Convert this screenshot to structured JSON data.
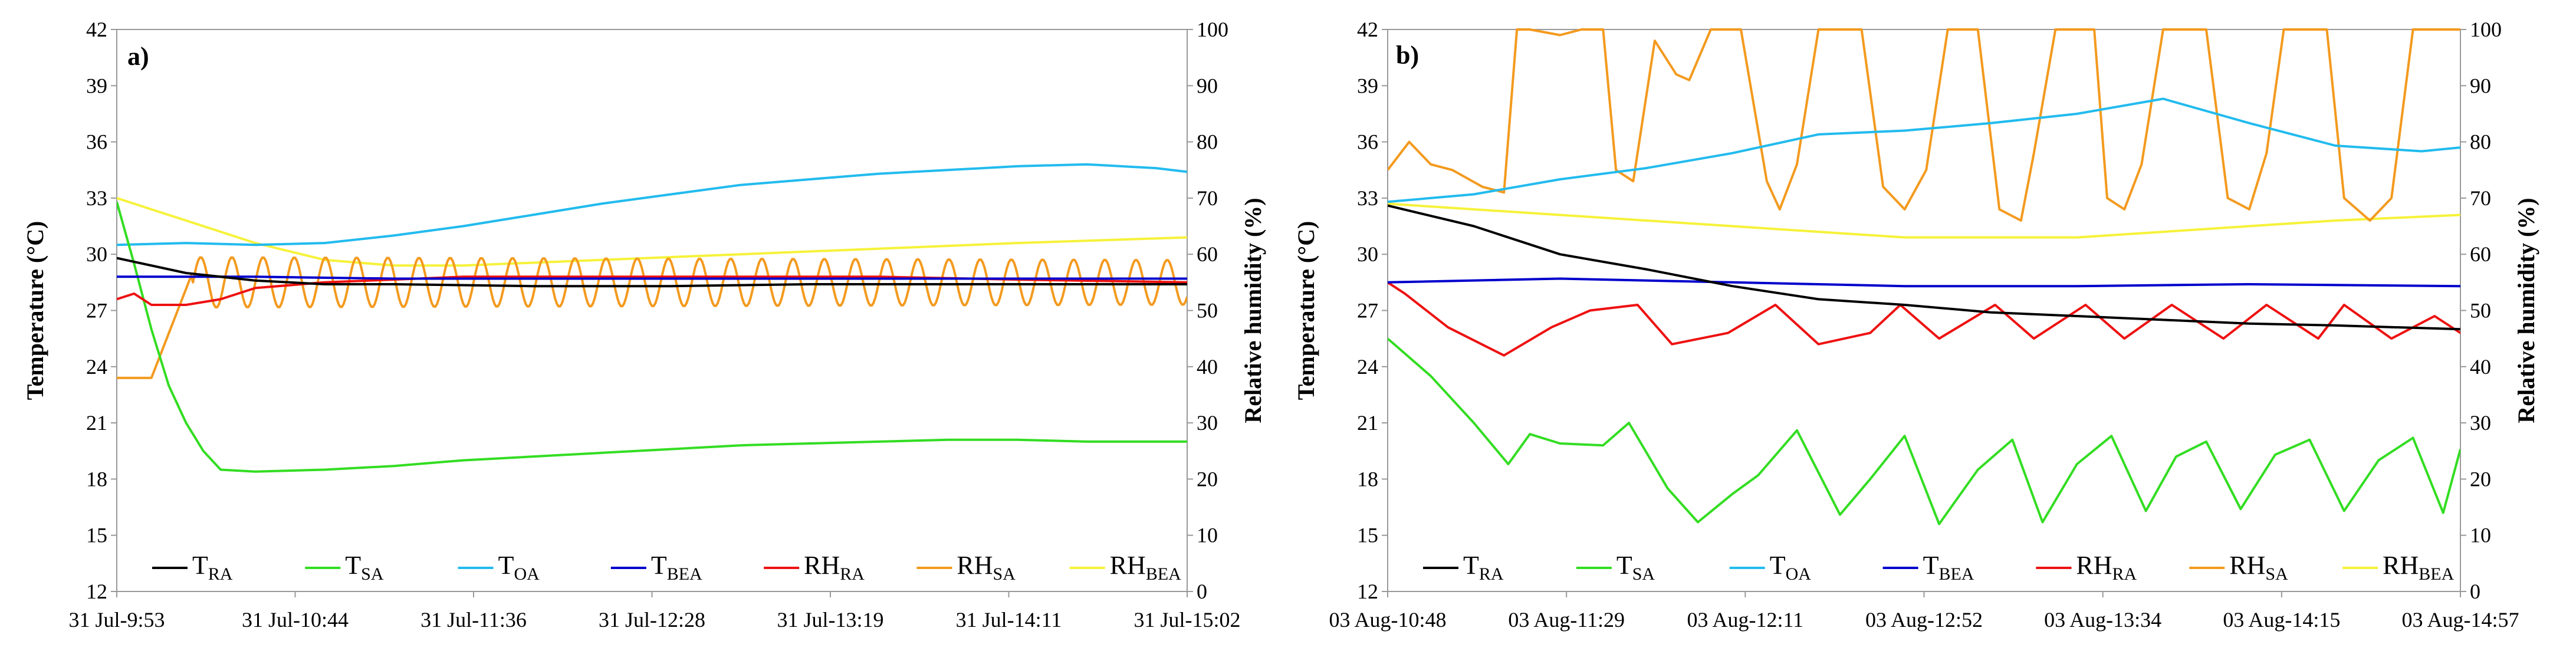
{
  "chart_data": [
    {
      "panel": "a)",
      "type": "line",
      "ylabel": "Temperature (°C)",
      "y2label": "Relative humidity (%)",
      "ylim": [
        12,
        42
      ],
      "y2lim": [
        0,
        100
      ],
      "yticks": [
        "42",
        "39",
        "36",
        "33",
        "30",
        "27",
        "24",
        "21",
        "18",
        "15",
        "12"
      ],
      "y2ticks": [
        "100",
        "90",
        "80",
        "70",
        "60",
        "50",
        "40",
        "30",
        "20",
        "10",
        "0"
      ],
      "xticks": [
        "31 Jul-9:53",
        "31 Jul-10:44",
        "31 Jul-11:36",
        "31 Jul-12:28",
        "31 Jul-13:19",
        "31 Jul-14:11",
        "31 Jul-15:02"
      ],
      "x_range_min": [
        0,
        309
      ],
      "legend": [
        {
          "base": "T",
          "sub": "RA",
          "color": "#000000"
        },
        {
          "base": "T",
          "sub": "SA",
          "color": "#33dd22"
        },
        {
          "base": "T",
          "sub": "OA",
          "color": "#22bbee"
        },
        {
          "base": "T",
          "sub": "BEA",
          "color": "#0000cc"
        },
        {
          "base": "RH",
          "sub": "RA",
          "color": "#ee1111"
        },
        {
          "base": "RH",
          "sub": "SA",
          "color": "#f39a1e"
        },
        {
          "base": "RH",
          "sub": "BEA",
          "color": "#f6f23a"
        }
      ],
      "series": [
        {
          "name": "T_RA",
          "axis": "left",
          "color": "#000000",
          "x": [
            0,
            20,
            40,
            60,
            80,
            120,
            160,
            200,
            240,
            280,
            309
          ],
          "values": [
            29.8,
            29.0,
            28.6,
            28.4,
            28.4,
            28.3,
            28.3,
            28.4,
            28.4,
            28.4,
            28.4
          ]
        },
        {
          "name": "T_SA",
          "axis": "left",
          "color": "#33dd22",
          "x": [
            0,
            5,
            10,
            15,
            20,
            25,
            30,
            40,
            60,
            80,
            100,
            120,
            140,
            160,
            180,
            200,
            220,
            240,
            260,
            280,
            309
          ],
          "values": [
            32.8,
            29.5,
            26.0,
            23.0,
            21.0,
            19.5,
            18.5,
            18.4,
            18.5,
            18.7,
            19.0,
            19.2,
            19.4,
            19.6,
            19.8,
            19.9,
            20.0,
            20.1,
            20.1,
            20.0,
            20.0
          ]
        },
        {
          "name": "T_OA",
          "axis": "left",
          "color": "#22bbee",
          "x": [
            0,
            20,
            40,
            60,
            80,
            100,
            120,
            140,
            160,
            180,
            200,
            220,
            240,
            260,
            280,
            300,
            309
          ],
          "values": [
            30.5,
            30.6,
            30.5,
            30.6,
            31.0,
            31.5,
            32.1,
            32.7,
            33.2,
            33.7,
            34.0,
            34.3,
            34.5,
            34.7,
            34.8,
            34.6,
            34.4
          ]
        },
        {
          "name": "T_BEA",
          "axis": "left",
          "color": "#0000cc",
          "x": [
            0,
            40,
            80,
            120,
            160,
            200,
            240,
            280,
            309
          ],
          "values": [
            28.8,
            28.8,
            28.7,
            28.7,
            28.7,
            28.7,
            28.7,
            28.7,
            28.7
          ]
        },
        {
          "name": "RH_RA",
          "axis": "right",
          "color": "#ee1111",
          "x": [
            0,
            5,
            10,
            20,
            30,
            40,
            60,
            80,
            100,
            140,
            180,
            220,
            260,
            309
          ],
          "values": [
            52,
            53,
            51,
            51,
            52,
            54,
            55,
            55.5,
            56,
            56,
            56,
            56,
            55.5,
            55
          ]
        },
        {
          "name": "RH_SA",
          "axis": "right",
          "color": "#f39a1e",
          "x_start": 0,
          "x_end": 309,
          "pattern": "oscillating",
          "values_summary": {
            "start": 38,
            "oscillation_center": 55,
            "amplitude_early": 4.5,
            "amplitude_late": 4.0,
            "period_min": 9
          }
        },
        {
          "name": "RH_BEA",
          "axis": "right",
          "color": "#f6f23a",
          "x": [
            0,
            10,
            20,
            40,
            60,
            80,
            100,
            140,
            180,
            220,
            260,
            309
          ],
          "values": [
            70,
            68,
            66,
            62,
            59,
            58,
            58,
            59,
            60,
            61,
            62,
            63
          ]
        }
      ]
    },
    {
      "panel": "b)",
      "type": "line",
      "ylabel": "Temperature (°C)",
      "y2label": "Relative humidity (%)",
      "ylim": [
        12,
        42
      ],
      "y2lim": [
        0,
        100
      ],
      "yticks": [
        "42",
        "39",
        "36",
        "33",
        "30",
        "27",
        "24",
        "21",
        "18",
        "15",
        "12"
      ],
      "y2ticks": [
        "100",
        "90",
        "80",
        "70",
        "60",
        "50",
        "40",
        "30",
        "20",
        "10",
        "0"
      ],
      "xticks": [
        "03 Aug-10:48",
        "03 Aug-11:29",
        "03 Aug-12:11",
        "03 Aug-12:52",
        "03 Aug-13:34",
        "03 Aug-14:15",
        "03 Aug-14:57"
      ],
      "x_range_min": [
        0,
        249
      ],
      "legend": [
        {
          "base": "T",
          "sub": "RA",
          "color": "#000000"
        },
        {
          "base": "T",
          "sub": "SA",
          "color": "#33dd22"
        },
        {
          "base": "T",
          "sub": "OA",
          "color": "#22bbee"
        },
        {
          "base": "T",
          "sub": "BEA",
          "color": "#0000cc"
        },
        {
          "base": "RH",
          "sub": "RA",
          "color": "#ee1111"
        },
        {
          "base": "RH",
          "sub": "SA",
          "color": "#f39a1e"
        },
        {
          "base": "RH",
          "sub": "BEA",
          "color": "#f6f23a"
        }
      ],
      "series": [
        {
          "name": "T_RA",
          "axis": "left",
          "color": "#000000",
          "x": [
            0,
            20,
            40,
            60,
            80,
            100,
            120,
            140,
            160,
            180,
            200,
            220,
            249
          ],
          "values": [
            32.6,
            31.5,
            30.0,
            29.2,
            28.3,
            27.6,
            27.3,
            26.9,
            26.7,
            26.5,
            26.3,
            26.2,
            26.0
          ]
        },
        {
          "name": "T_SA",
          "axis": "left",
          "color": "#33dd22",
          "x": [
            0,
            10,
            20,
            28,
            33,
            40,
            50,
            56,
            65,
            72,
            80,
            86,
            95,
            105,
            112,
            120,
            128,
            137,
            145,
            152,
            160,
            168,
            176,
            183,
            190,
            198,
            206,
            214,
            222,
            230,
            238,
            245,
            249
          ],
          "values": [
            25.5,
            23.5,
            21.0,
            18.8,
            20.4,
            19.9,
            19.8,
            21.0,
            17.5,
            15.7,
            17.2,
            18.2,
            20.6,
            16.1,
            18.0,
            20.3,
            15.6,
            18.5,
            20.1,
            15.7,
            18.8,
            20.3,
            16.3,
            19.2,
            20.0,
            16.4,
            19.3,
            20.1,
            16.3,
            19.0,
            20.2,
            16.2,
            19.6
          ]
        },
        {
          "name": "T_OA",
          "axis": "left",
          "color": "#22bbee",
          "x": [
            0,
            20,
            40,
            60,
            80,
            100,
            120,
            140,
            160,
            180,
            200,
            220,
            240,
            249
          ],
          "values": [
            32.8,
            33.2,
            34.0,
            34.6,
            35.4,
            36.4,
            36.6,
            37.0,
            37.5,
            38.3,
            37.0,
            35.8,
            35.5,
            35.7
          ]
        },
        {
          "name": "T_BEA",
          "axis": "left",
          "color": "#0000cc",
          "x": [
            0,
            40,
            80,
            120,
            160,
            200,
            249
          ],
          "values": [
            28.5,
            28.7,
            28.5,
            28.3,
            28.3,
            28.4,
            28.3
          ]
        },
        {
          "name": "RH_RA",
          "axis": "right",
          "color": "#ee1111",
          "x": [
            0,
            4,
            14,
            27,
            38,
            47,
            58,
            66,
            79,
            90,
            100,
            112,
            119,
            128,
            141,
            150,
            162,
            171,
            182,
            194,
            204,
            216,
            222,
            233,
            243,
            249
          ],
          "values": [
            55,
            53,
            47,
            42,
            47,
            50,
            51,
            44,
            46,
            51,
            44,
            46,
            51,
            45,
            51,
            45,
            51,
            45,
            51,
            45,
            51,
            45,
            51,
            45,
            49,
            46
          ]
        },
        {
          "name": "RH_SA",
          "axis": "right",
          "color": "#f39a1e",
          "x": [
            0,
            5,
            10,
            15,
            22,
            27,
            30,
            33,
            40,
            45,
            50,
            53,
            57,
            62,
            67,
            70,
            75,
            82,
            88,
            91,
            95,
            100,
            104,
            110,
            115,
            120,
            125,
            130,
            134,
            137,
            142,
            147,
            150,
            155,
            160,
            164,
            167,
            171,
            175,
            180,
            184,
            190,
            195,
            200,
            204,
            208,
            214,
            218,
            222,
            228,
            233,
            238,
            242,
            247,
            249
          ],
          "values": [
            75,
            80,
            76,
            75,
            72,
            71,
            100,
            100,
            99,
            100,
            100,
            75,
            73,
            98,
            92,
            91,
            100,
            100,
            73,
            68,
            76,
            100,
            100,
            100,
            72,
            68,
            75,
            100,
            100,
            100,
            68,
            66,
            78,
            100,
            100,
            100,
            70,
            68,
            76,
            100,
            100,
            100,
            70,
            68,
            78,
            100,
            100,
            100,
            70,
            66,
            70,
            100,
            100,
            100,
            100
          ]
        },
        {
          "name": "RH_BEA",
          "axis": "right",
          "color": "#f6f23a",
          "x": [
            0,
            20,
            40,
            60,
            80,
            100,
            120,
            140,
            160,
            180,
            200,
            220,
            249
          ],
          "values": [
            69,
            68,
            67,
            66,
            65,
            64,
            63,
            63,
            63,
            64,
            65,
            66,
            67
          ]
        }
      ]
    }
  ]
}
